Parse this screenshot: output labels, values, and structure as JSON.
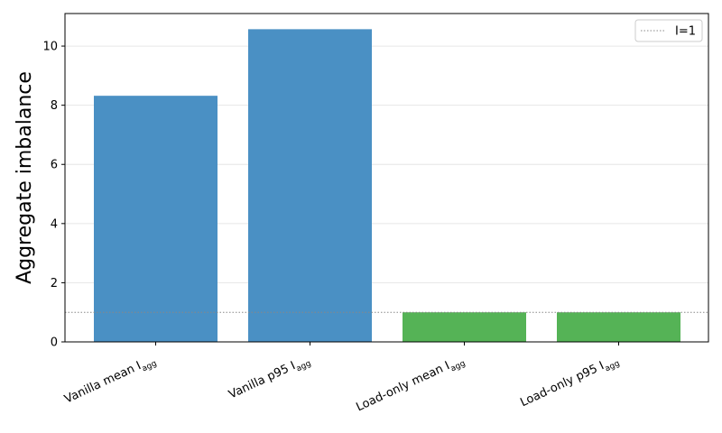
{
  "chart_data": {
    "type": "bar",
    "y_label": "Aggregate imbalance",
    "categories": [
      {
        "text": "Vanilla mean I",
        "subscript": "agg"
      },
      {
        "text": "Vanilla p95 I",
        "subscript": "agg"
      },
      {
        "text": "Load-only mean I",
        "subscript": "agg"
      },
      {
        "text": "Load-only p95 I",
        "subscript": "agg"
      }
    ],
    "values": [
      8.32,
      10.57,
      1.0,
      1.0
    ],
    "colors": [
      "#4a90c4",
      "#4a90c4",
      "#55b356",
      "#55b356"
    ],
    "ylim": [
      0,
      11.1
    ],
    "yticks": [
      0,
      2,
      4,
      6,
      8,
      10
    ],
    "grid": true,
    "reference_line": {
      "value": 1,
      "label": "I=1",
      "color": "#888888"
    },
    "legend": "upper right"
  }
}
